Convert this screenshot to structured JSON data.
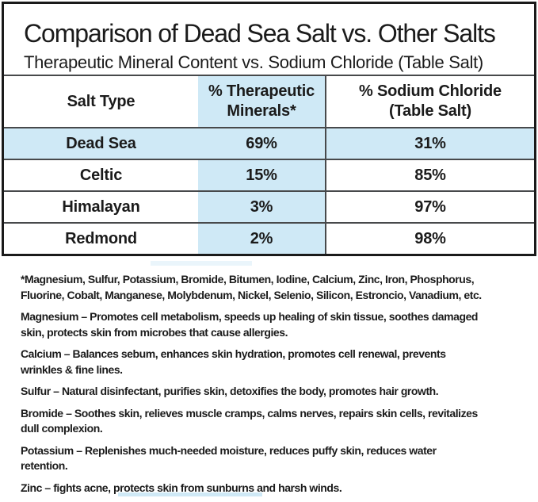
{
  "header": {
    "title": "Comparison of Dead Sea Salt vs. Other Salts",
    "subtitle": "Therapeutic Mineral Content vs. Sodium Chloride (Table Salt)"
  },
  "table": {
    "columns": {
      "salt_type": "Salt Type",
      "therapeutic": "% Therapeutic\nMinerals*",
      "sodium": "% Sodium Chloride\n(Table Salt)"
    },
    "rows": [
      {
        "salt": "Dead Sea",
        "therapeutic_pct": "69%",
        "sodium_pct": "31%"
      },
      {
        "salt": "Celtic",
        "therapeutic_pct": "15%",
        "sodium_pct": "85%"
      },
      {
        "salt": "Himalayan",
        "therapeutic_pct": "3%",
        "sodium_pct": "97%"
      },
      {
        "salt": "Redmond",
        "therapeutic_pct": "2%",
        "sodium_pct": "98%"
      }
    ],
    "highlighted_row": "Dead Sea"
  },
  "footnote": "*Magnesium, Sulfur, Potassium, Bromide, Bitumen, Iodine, Calcium, Zinc, Iron, Phosphorus,\nFluorine, Cobalt, Manganese, Molybdenum, Nickel, Selenio, Silicon, Estroncio, Vanadium, etc.",
  "mineral_notes": [
    "Magnesium – Promotes cell metabolism, speeds up healing of skin tissue, soothes damaged\nskin, protects skin from microbes that cause allergies.",
    "Calcium – Balances sebum, enhances skin hydration, promotes cell renewal, prevents\nwrinkles & fine lines.",
    "Sulfur – Natural disinfectant, purifies skin, detoxifies the body, promotes hair growth.",
    "Bromide – Soothes skin, relieves muscle cramps, calms nerves, repairs skin cells, revitalizes\ndull complexion.",
    "Potassium – Replenishes much-needed moisture, reduces puffy skin, reduces water\nretention.",
    "Zinc – fights acne, protects skin from sunburns and harsh winds."
  ],
  "colors": {
    "highlight_blue": "#cfe9f6",
    "table_line": "#47494b",
    "frame_border": "#1a1a1a",
    "text": "#1b1b1b"
  },
  "chart_data": {
    "type": "table",
    "title": "Comparison of Dead Sea Salt vs. Other Salts",
    "categories": [
      "Dead Sea",
      "Celtic",
      "Himalayan",
      "Redmond"
    ],
    "series": [
      {
        "name": "% Therapeutic Minerals",
        "values": [
          69,
          15,
          3,
          2
        ]
      },
      {
        "name": "% Sodium Chloride (Table Salt)",
        "values": [
          31,
          85,
          97,
          98
        ]
      }
    ]
  }
}
